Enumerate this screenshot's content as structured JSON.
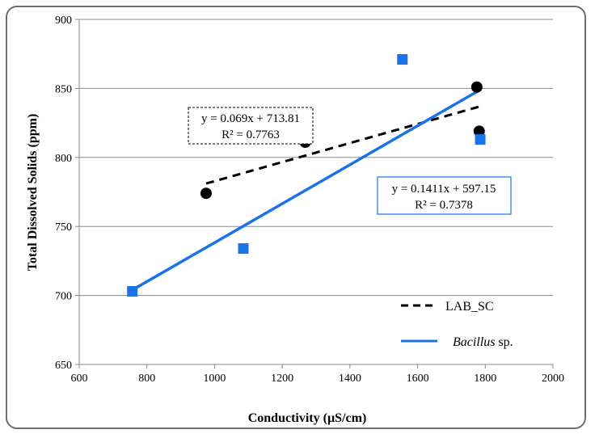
{
  "chart_data": {
    "type": "scatter",
    "xlabel": "Conductivity (µS/cm)",
    "ylabel": "Total Dissolved Solids (ppm)",
    "xlim": [
      600,
      2000
    ],
    "ylim": [
      650,
      900
    ],
    "x_ticks": [
      600,
      800,
      1000,
      1200,
      1400,
      1600,
      1800,
      2000
    ],
    "y_ticks": [
      650,
      700,
      750,
      800,
      850,
      900
    ],
    "grid": "horizontal",
    "legend_position": "bottom-right",
    "series": [
      {
        "name": "LAB_SC",
        "marker": "circle",
        "color": "#000000",
        "points": [
          {
            "x": 975,
            "y": 774
          },
          {
            "x": 1268,
            "y": 811
          },
          {
            "x": 1775,
            "y": 851
          },
          {
            "x": 1782,
            "y": 819
          }
        ],
        "trendline": {
          "slope": 0.069,
          "intercept": 713.81,
          "x_range": [
            975,
            1790
          ],
          "style": "dashed",
          "equation": "y = 0.069x + 713.81",
          "r2": "R² = 0.7763"
        }
      },
      {
        "name": "Bacillus sp.",
        "marker": "square",
        "color": "#1a73e8",
        "points": [
          {
            "x": 757,
            "y": 703
          },
          {
            "x": 1085,
            "y": 734
          },
          {
            "x": 1555,
            "y": 871
          },
          {
            "x": 1785,
            "y": 813
          }
        ],
        "trendline": {
          "slope": 0.1411,
          "intercept": 597.15,
          "x_range": [
            755,
            1785
          ],
          "style": "solid",
          "equation": "y = 0.1411x + 597.15",
          "r2": "R² = 0.7378"
        }
      }
    ],
    "legend": [
      {
        "label": "LAB_SC",
        "style": "dashed",
        "color": "#000000"
      },
      {
        "label_italic": "Bacillus",
        "label_rest": " sp.",
        "style": "solid",
        "color": "#1a73e8"
      }
    ]
  }
}
